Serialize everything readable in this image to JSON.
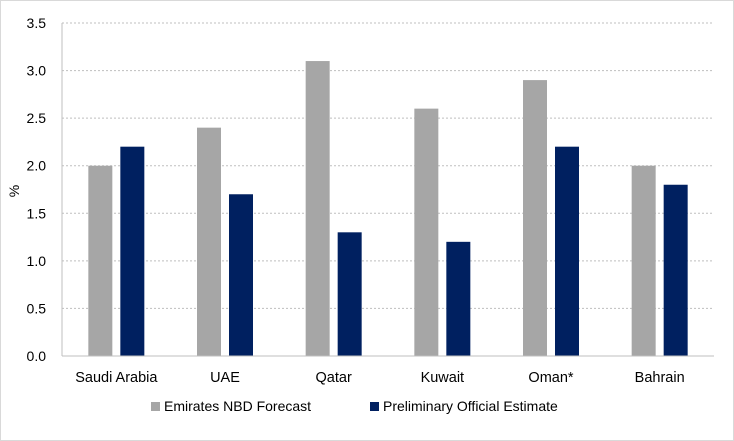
{
  "chart_data": {
    "type": "bar",
    "title": "",
    "xlabel": "",
    "ylabel": "%",
    "ylim": [
      0,
      3.5
    ],
    "yticks": [
      "0.0",
      "0.5",
      "1.0",
      "1.5",
      "2.0",
      "2.5",
      "3.0",
      "3.5"
    ],
    "ytick_values": [
      0,
      0.5,
      1.0,
      1.5,
      2.0,
      2.5,
      3.0,
      3.5
    ],
    "grid": "horizontal dotted",
    "legend_position": "bottom",
    "categories": [
      "Saudi Arabia",
      "UAE",
      "Qatar",
      "Kuwait",
      "Oman*",
      "Bahrain"
    ],
    "series": [
      {
        "name": "Emirates NBD Forecast",
        "color": "#a6a6a6",
        "values": [
          2.0,
          2.4,
          3.1,
          2.6,
          2.9,
          2.0
        ]
      },
      {
        "name": "Preliminary Official Estimate",
        "color": "#002060",
        "values": [
          2.2,
          1.7,
          1.3,
          1.2,
          2.2,
          1.8
        ]
      }
    ]
  }
}
